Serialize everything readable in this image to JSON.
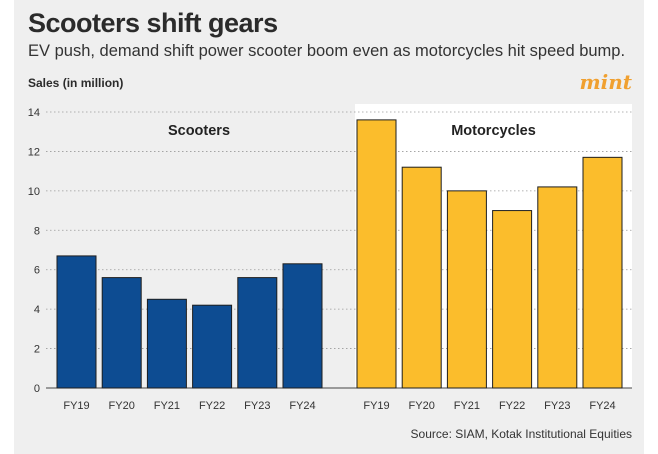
{
  "title": "Scooters shift gears",
  "subtitle": "EV push, demand shift power scooter boom even as motorcycles hit speed bump.",
  "brand": "mint",
  "source": "Source: SIAM, Kotak Institutional Equities",
  "chart_data": {
    "type": "bar",
    "ylabel": "Sales (in million)",
    "ylim": [
      0,
      14
    ],
    "yticks": [
      0,
      2,
      4,
      6,
      8,
      10,
      12,
      14
    ],
    "grid": true,
    "panels": [
      {
        "name": "Scooters",
        "color": "#0d4c92",
        "background": "#efefef",
        "categories": [
          "FY19",
          "FY20",
          "FY21",
          "FY22",
          "FY23",
          "FY24"
        ],
        "values": [
          6.7,
          5.6,
          4.5,
          4.2,
          5.6,
          6.3
        ]
      },
      {
        "name": "Motorcycles",
        "color": "#fbbd2c",
        "background": "#ffffff",
        "categories": [
          "FY19",
          "FY20",
          "FY21",
          "FY22",
          "FY23",
          "FY24"
        ],
        "values": [
          13.6,
          11.2,
          10.0,
          9.0,
          10.2,
          11.7
        ]
      }
    ]
  }
}
